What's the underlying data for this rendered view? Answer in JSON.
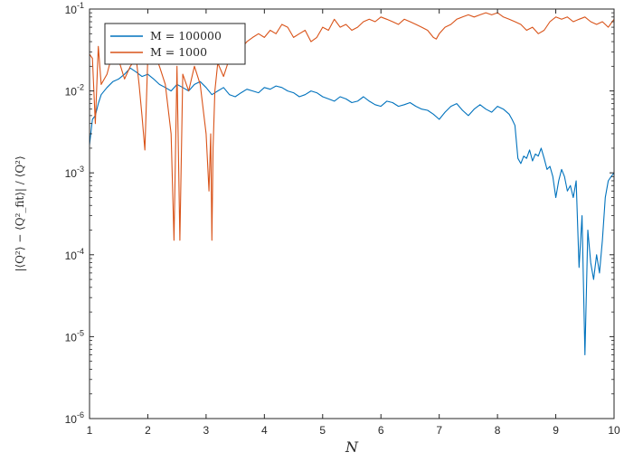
{
  "chart_data": {
    "type": "line",
    "xlabel": "N",
    "ylabel": "|⟨Q²⟩ − ⟨Q²_fit⟩| / ⟨Q²⟩",
    "xlim": [
      1,
      10
    ],
    "ylim": [
      1e-06,
      0.1
    ],
    "yscale": "log",
    "xticks": [
      1,
      2,
      3,
      4,
      5,
      6,
      7,
      8,
      9,
      10
    ],
    "yticks": [
      {
        "base": "10",
        "exp": "-6",
        "value": 1e-06
      },
      {
        "base": "10",
        "exp": "-5",
        "value": 1e-05
      },
      {
        "base": "10",
        "exp": "-4",
        "value": 0.0001
      },
      {
        "base": "10",
        "exp": "-3",
        "value": 0.001
      },
      {
        "base": "10",
        "exp": "-2",
        "value": 0.01
      },
      {
        "base": "10",
        "exp": "-1",
        "value": 0.1
      }
    ],
    "grid": false,
    "legend_position": "top-left",
    "series": [
      {
        "name": "M = 100000",
        "color": "#0072BD",
        "x": [
          1.0,
          1.05,
          1.1,
          1.15,
          1.2,
          1.3,
          1.4,
          1.5,
          1.6,
          1.7,
          1.8,
          1.9,
          2.0,
          2.1,
          2.2,
          2.3,
          2.4,
          2.5,
          2.6,
          2.7,
          2.8,
          2.9,
          3.0,
          3.1,
          3.2,
          3.3,
          3.4,
          3.5,
          3.6,
          3.7,
          3.8,
          3.9,
          4.0,
          4.1,
          4.2,
          4.3,
          4.4,
          4.5,
          4.6,
          4.7,
          4.8,
          4.9,
          5.0,
          5.1,
          5.2,
          5.3,
          5.4,
          5.5,
          5.6,
          5.7,
          5.8,
          5.9,
          6.0,
          6.1,
          6.2,
          6.3,
          6.4,
          6.5,
          6.6,
          6.7,
          6.8,
          6.9,
          7.0,
          7.1,
          7.2,
          7.3,
          7.4,
          7.5,
          7.6,
          7.7,
          7.8,
          7.9,
          8.0,
          8.1,
          8.2,
          8.25,
          8.3,
          8.35,
          8.4,
          8.45,
          8.5,
          8.55,
          8.6,
          8.65,
          8.7,
          8.75,
          8.8,
          8.85,
          8.9,
          8.95,
          9.0,
          9.05,
          9.1,
          9.15,
          9.2,
          9.25,
          9.3,
          9.35,
          9.4,
          9.45,
          9.5,
          9.55,
          9.6,
          9.65,
          9.7,
          9.75,
          9.8,
          9.85,
          9.9,
          9.95,
          10.0
        ],
        "y": [
          0.0022,
          0.0045,
          0.005,
          0.007,
          0.009,
          0.011,
          0.013,
          0.014,
          0.016,
          0.019,
          0.017,
          0.015,
          0.016,
          0.014,
          0.012,
          0.011,
          0.01,
          0.012,
          0.011,
          0.01,
          0.012,
          0.013,
          0.011,
          0.009,
          0.01,
          0.011,
          0.009,
          0.0085,
          0.0095,
          0.0105,
          0.01,
          0.0095,
          0.011,
          0.0105,
          0.0115,
          0.011,
          0.01,
          0.0095,
          0.0085,
          0.009,
          0.01,
          0.0095,
          0.0085,
          0.008,
          0.0075,
          0.0085,
          0.008,
          0.0072,
          0.0075,
          0.0085,
          0.0075,
          0.0068,
          0.0065,
          0.0075,
          0.0072,
          0.0065,
          0.0068,
          0.0072,
          0.0065,
          0.006,
          0.0058,
          0.0052,
          0.0045,
          0.0055,
          0.0065,
          0.007,
          0.0058,
          0.005,
          0.006,
          0.0068,
          0.006,
          0.0055,
          0.0065,
          0.006,
          0.0052,
          0.0045,
          0.0038,
          0.0015,
          0.0013,
          0.0016,
          0.0015,
          0.0019,
          0.0014,
          0.0017,
          0.0016,
          0.002,
          0.0015,
          0.0011,
          0.0012,
          0.0009,
          0.0005,
          0.0008,
          0.0011,
          0.0009,
          0.0006,
          0.0007,
          0.0005,
          0.0008,
          7e-05,
          0.0003,
          6e-06,
          0.0002,
          8e-05,
          5e-05,
          0.0001,
          6e-05,
          0.00015,
          0.0005,
          0.0008,
          0.0009,
          0.001
        ]
      },
      {
        "name": "M = 1000",
        "color": "#D95319",
        "x": [
          1.0,
          1.05,
          1.1,
          1.15,
          1.2,
          1.3,
          1.4,
          1.5,
          1.6,
          1.7,
          1.8,
          1.85,
          1.9,
          1.95,
          2.0,
          2.1,
          2.2,
          2.3,
          2.4,
          2.45,
          2.5,
          2.55,
          2.6,
          2.7,
          2.8,
          2.9,
          3.0,
          3.05,
          3.08,
          3.1,
          3.12,
          3.15,
          3.2,
          3.3,
          3.4,
          3.5,
          3.6,
          3.7,
          3.8,
          3.9,
          4.0,
          4.1,
          4.2,
          4.3,
          4.4,
          4.5,
          4.6,
          4.7,
          4.8,
          4.9,
          5.0,
          5.1,
          5.2,
          5.3,
          5.4,
          5.5,
          5.6,
          5.7,
          5.8,
          5.9,
          6.0,
          6.1,
          6.2,
          6.3,
          6.4,
          6.5,
          6.6,
          6.7,
          6.8,
          6.9,
          6.95,
          7.0,
          7.1,
          7.2,
          7.3,
          7.4,
          7.5,
          7.6,
          7.7,
          7.8,
          7.9,
          8.0,
          8.1,
          8.2,
          8.3,
          8.4,
          8.5,
          8.6,
          8.7,
          8.8,
          8.9,
          9.0,
          9.1,
          9.2,
          9.3,
          9.4,
          9.5,
          9.6,
          9.7,
          9.8,
          9.9,
          10.0
        ],
        "y": [
          0.028,
          0.025,
          0.004,
          0.035,
          0.012,
          0.016,
          0.03,
          0.024,
          0.014,
          0.02,
          0.025,
          0.012,
          0.005,
          0.0019,
          0.025,
          0.03,
          0.02,
          0.012,
          0.003,
          0.00015,
          0.02,
          0.00015,
          0.016,
          0.01,
          0.02,
          0.012,
          0.003,
          0.0006,
          0.003,
          0.00015,
          0.002,
          0.01,
          0.022,
          0.015,
          0.025,
          0.035,
          0.033,
          0.04,
          0.045,
          0.05,
          0.045,
          0.055,
          0.05,
          0.065,
          0.06,
          0.045,
          0.05,
          0.055,
          0.04,
          0.045,
          0.06,
          0.055,
          0.075,
          0.06,
          0.065,
          0.055,
          0.06,
          0.07,
          0.075,
          0.07,
          0.08,
          0.075,
          0.07,
          0.065,
          0.075,
          0.07,
          0.065,
          0.06,
          0.055,
          0.045,
          0.043,
          0.05,
          0.06,
          0.065,
          0.075,
          0.08,
          0.085,
          0.08,
          0.085,
          0.09,
          0.085,
          0.09,
          0.08,
          0.075,
          0.07,
          0.065,
          0.055,
          0.06,
          0.05,
          0.055,
          0.07,
          0.08,
          0.075,
          0.08,
          0.07,
          0.075,
          0.08,
          0.07,
          0.065,
          0.07,
          0.06,
          0.075
        ]
      }
    ]
  }
}
